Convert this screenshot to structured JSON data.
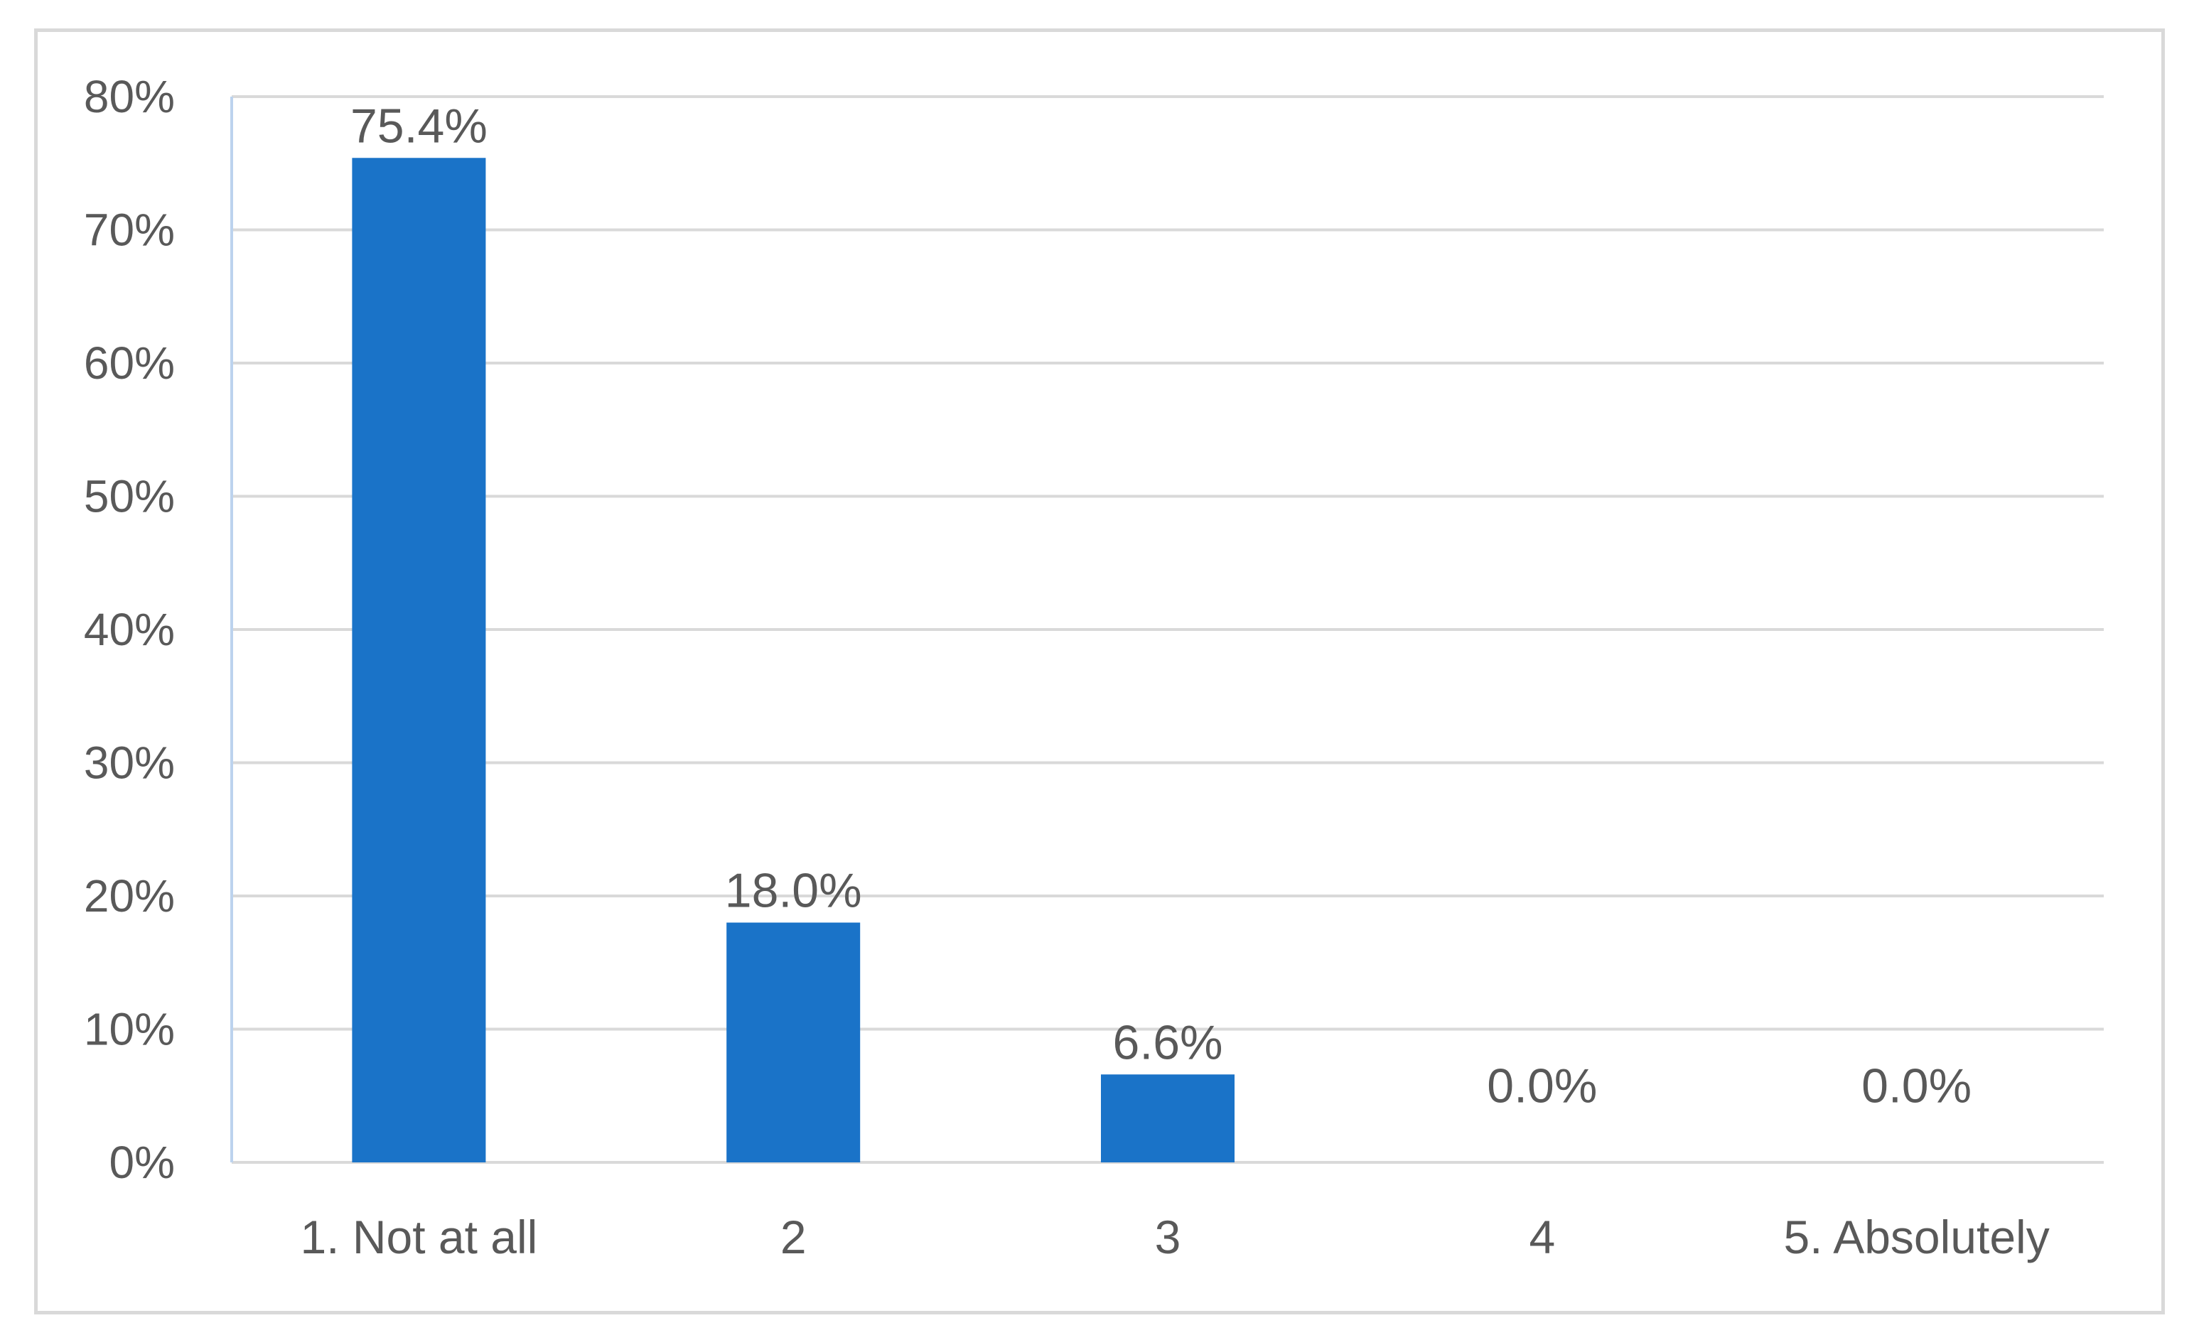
{
  "chart_data": {
    "type": "bar",
    "categories": [
      "1. Not at all",
      "2",
      "3",
      "4",
      "5. Absolutely"
    ],
    "values": [
      75.4,
      18.0,
      6.6,
      0.0,
      0.0
    ],
    "data_labels": [
      "75.4%",
      "18.0%",
      "6.6%",
      "0.0%",
      "0.0%"
    ],
    "ylim": [
      0,
      80
    ],
    "yticks": [
      0,
      10,
      20,
      30,
      40,
      50,
      60,
      70,
      80
    ],
    "ytick_labels": [
      "0%",
      "10%",
      "20%",
      "30%",
      "40%",
      "50%",
      "60%",
      "70%",
      "80%"
    ],
    "grid": true,
    "legend": "none",
    "colors": {
      "bar": "#1a73c8",
      "grid": "#d9d9d9",
      "axis_line": "#bcd3ee",
      "text": "#595959"
    }
  }
}
